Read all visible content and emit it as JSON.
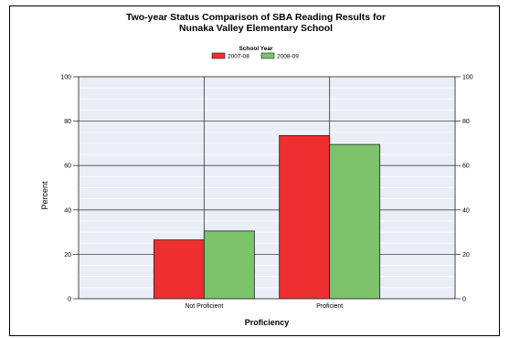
{
  "chart_data": {
    "type": "bar",
    "title_lines": [
      "Two-year Status Comparison of SBA Reading Results for",
      "Nunaka Valley Elementary School"
    ],
    "legend_title": "School Year",
    "legend_placement": "top-center",
    "categories": [
      "Not Proficient",
      "Proficient"
    ],
    "series": [
      {
        "name": "2007-08",
        "values": [
          26.5,
          73.5
        ],
        "color": "#ee2e31"
      },
      {
        "name": "2008-09",
        "values": [
          30.5,
          69.5
        ],
        "color": "#7dc36b"
      }
    ],
    "xlabel": "Proficiency",
    "ylabel": "Percent",
    "ylim": [
      0,
      100
    ],
    "yticks": [
      0,
      20,
      40,
      60,
      80,
      100
    ],
    "grid": true,
    "plot_background": "#e9eef7"
  }
}
